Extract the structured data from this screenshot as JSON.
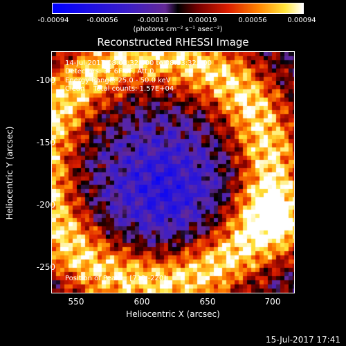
{
  "colorbar": {
    "ticks": [
      "-0.00094",
      "-0.00056",
      "-0.00019",
      "0.00019",
      "0.00056",
      "0.00094"
    ],
    "unit": "(photons cm⁻² s⁻¹ asec⁻²)"
  },
  "title": "Reconstructed RHESSI Image",
  "info": {
    "time": "14-Jul-2017 08:03:32.000 to 08:13:32.000",
    "detectors": "Detectors: 3F 6F 8F, Att 0",
    "energy": "Energy Range: 25.0 - 50.0 keV",
    "method": "Clean    Total counts: 1.57E+04",
    "peak": "Position of Peak = [713,-220]"
  },
  "axes": {
    "xlabel": "Heliocentric X (arcsec)",
    "ylabel": "Heliocentric Y (arcsec)",
    "xticks": [
      "550",
      "600",
      "650",
      "700"
    ],
    "yticks": [
      "-100",
      "-150",
      "-200",
      "-250"
    ]
  },
  "timestamp": "15-Jul-2017 17:41"
}
